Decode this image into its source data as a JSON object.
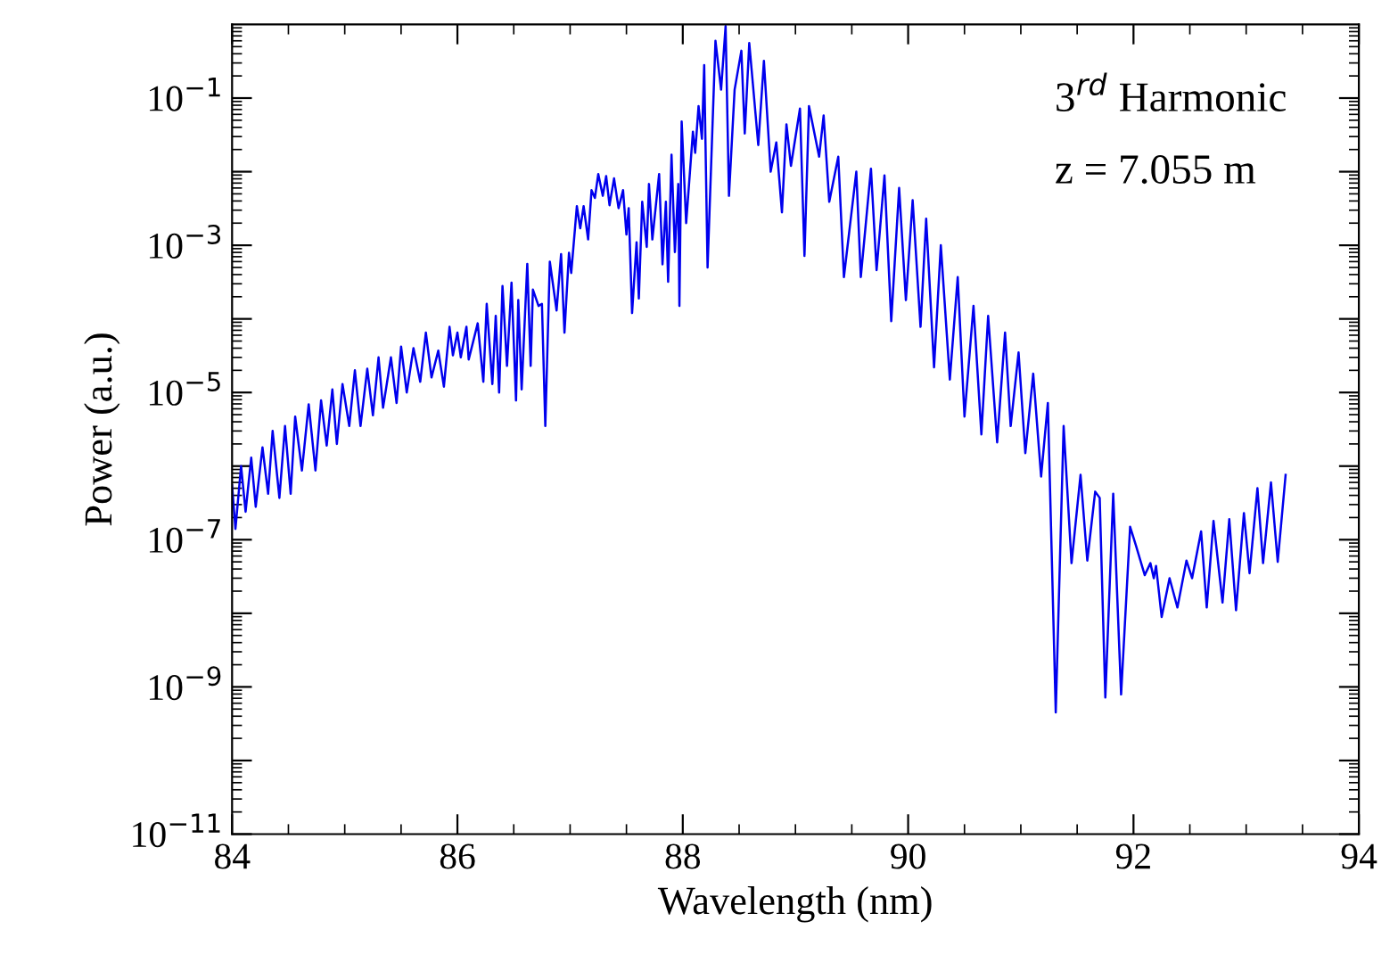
{
  "chart_data": {
    "type": "line",
    "xlabel": "Wavelength (nm)",
    "ylabel": "Power (a.u.)",
    "annotations": [
      "3$^{rd}$ Harmonic",
      "z = 7.055 m"
    ],
    "xlim": [
      84,
      94
    ],
    "xticks": [
      84,
      86,
      88,
      90,
      92,
      94
    ],
    "ylim": [
      1e-11,
      1
    ],
    "log": true,
    "yticks": [
      {
        "value": 1e-11,
        "label": "10$^{−11}$"
      },
      {
        "value": 1e-10,
        "label": null
      },
      {
        "value": 1e-09,
        "label": "10$^{−9}$"
      },
      {
        "value": 1e-08,
        "label": null
      },
      {
        "value": 1e-07,
        "label": "10$^{−7}$"
      },
      {
        "value": 1e-06,
        "label": null
      },
      {
        "value": 1e-05,
        "label": "10$^{−5}$"
      },
      {
        "value": 0.0001,
        "label": null
      },
      {
        "value": 0.001,
        "label": "10$^{−3}$"
      },
      {
        "value": 0.01,
        "label": null
      },
      {
        "value": 0.1,
        "label": "10$^{−1}$"
      }
    ],
    "grid": false,
    "legend": false,
    "marker": "none",
    "line_style": "solid",
    "series": [
      {
        "color": "#0000ee",
        "x": [
          84.0,
          84.03,
          84.08,
          84.12,
          84.17,
          84.21,
          84.27,
          84.32,
          84.36,
          84.42,
          84.47,
          84.52,
          84.56,
          84.62,
          84.68,
          84.74,
          84.79,
          84.84,
          84.89,
          84.93,
          84.98,
          85.04,
          85.09,
          85.14,
          85.2,
          85.25,
          85.3,
          85.34,
          85.41,
          85.46,
          85.5,
          85.55,
          85.61,
          85.67,
          85.72,
          85.77,
          85.83,
          85.88,
          85.93,
          85.96,
          86.0,
          86.03,
          86.08,
          86.1,
          86.18,
          86.23,
          86.26,
          86.31,
          86.34,
          86.37,
          86.4,
          86.44,
          86.48,
          86.52,
          86.54,
          86.57,
          86.62,
          86.65,
          86.67,
          86.72,
          86.75,
          86.78,
          86.82,
          86.88,
          86.92,
          86.95,
          86.99,
          87.01,
          87.06,
          87.09,
          87.12,
          87.16,
          87.19,
          87.22,
          87.25,
          87.29,
          87.32,
          87.35,
          87.39,
          87.43,
          87.47,
          87.5,
          87.52,
          87.55,
          87.59,
          87.61,
          87.64,
          87.68,
          87.7,
          87.73,
          87.79,
          87.82,
          87.85,
          87.87,
          87.9,
          87.93,
          87.96,
          87.97,
          87.99,
          88.03,
          88.09,
          88.11,
          88.14,
          88.17,
          88.19,
          88.22,
          88.29,
          88.34,
          88.38,
          88.41,
          88.46,
          88.52,
          88.55,
          88.59,
          88.67,
          88.72,
          88.78,
          88.83,
          88.88,
          88.92,
          88.96,
          89.04,
          89.08,
          89.12,
          89.21,
          89.25,
          89.3,
          89.38,
          89.43,
          89.54,
          89.58,
          89.67,
          89.72,
          89.79,
          89.85,
          89.92,
          89.98,
          90.04,
          90.11,
          90.16,
          90.23,
          90.29,
          90.37,
          90.44,
          90.5,
          90.58,
          90.65,
          90.71,
          90.79,
          90.86,
          90.91,
          90.98,
          91.04,
          91.11,
          91.18,
          91.24,
          91.31,
          91.38,
          91.45,
          91.53,
          91.59,
          91.66,
          91.7,
          91.75,
          91.82,
          91.89,
          91.97,
          92.02,
          92.1,
          92.15,
          92.18,
          92.2,
          92.25,
          92.32,
          92.39,
          92.47,
          92.52,
          92.6,
          92.65,
          92.71,
          92.79,
          92.85,
          92.91,
          92.98,
          93.03,
          93.1,
          93.15,
          93.22,
          93.28,
          93.35
        ],
        "values": [
          5.5e-07,
          1.4e-07,
          1e-06,
          2.4e-07,
          1.3e-06,
          2.8e-07,
          1.8e-06,
          4.2e-07,
          3e-06,
          3.7e-07,
          3.5e-06,
          4.2e-07,
          4.7e-06,
          8.7e-07,
          6.9e-06,
          8.7e-07,
          7.8e-06,
          1.9e-06,
          1.1e-05,
          2e-06,
          1.3e-05,
          3.5e-06,
          2e-05,
          3.5e-06,
          2.1e-05,
          4.9e-06,
          3e-05,
          6.2e-06,
          3e-05,
          7.2e-06,
          4.2e-05,
          1e-05,
          4e-05,
          1.4e-05,
          6.5e-05,
          1.6e-05,
          3.7e-05,
          1.2e-05,
          7.8e-05,
          3.2e-05,
          6.5e-05,
          3e-05,
          7.8e-05,
          2.8e-05,
          8.7e-05,
          1.4e-05,
          0.00016,
          1.3e-05,
          0.00011,
          1e-05,
          0.00028,
          2.3e-05,
          0.00031,
          7.8e-06,
          0.00018,
          1.1e-05,
          0.00056,
          2.3e-05,
          0.00025,
          0.00015,
          0.00016,
          3.5e-06,
          0.0006,
          0.00013,
          0.00076,
          6.5e-05,
          0.00079,
          0.00042,
          0.0034,
          0.0017,
          0.0034,
          0.0012,
          0.0056,
          0.0044,
          0.0093,
          0.0047,
          0.0087,
          0.0035,
          0.0081,
          0.0032,
          0.0056,
          0.0014,
          0.0032,
          0.00012,
          0.0011,
          0.00019,
          0.0039,
          0.00095,
          0.0068,
          0.0012,
          0.0093,
          0.00055,
          0.0039,
          0.00032,
          0.017,
          0.00081,
          0.0068,
          0.00015,
          0.048,
          0.002,
          0.035,
          0.018,
          0.078,
          0.028,
          0.28,
          0.0005,
          0.6,
          0.13,
          0.95,
          0.0047,
          0.13,
          0.44,
          0.033,
          0.56,
          0.023,
          0.32,
          0.01,
          0.025,
          0.0028,
          0.044,
          0.012,
          0.072,
          0.00072,
          0.078,
          0.016,
          0.058,
          0.0039,
          0.016,
          0.00037,
          0.01,
          0.00037,
          0.011,
          0.00046,
          0.0089,
          9.3e-05,
          0.006,
          0.00018,
          0.0041,
          7.8e-05,
          0.0023,
          2.2e-05,
          0.001,
          1.5e-05,
          0.00037,
          4.7e-06,
          0.00015,
          2.7e-06,
          0.00011,
          2.1e-06,
          6.5e-05,
          3.5e-06,
          3.5e-05,
          1.5e-06,
          1.8e-05,
          7.2e-07,
          7.2e-06,
          4.5e-10,
          3.5e-06,
          4.8e-08,
          7.6e-07,
          5.2e-08,
          4.5e-07,
          3.7e-07,
          7.2e-10,
          4.2e-07,
          7.9e-10,
          1.5e-07,
          8.5e-08,
          3.3e-08,
          4.8e-08,
          3e-08,
          4.4e-08,
          8.9e-09,
          3e-08,
          1.2e-08,
          5.2e-08,
          3e-08,
          1.3e-07,
          1.2e-08,
          1.8e-07,
          1.4e-08,
          1.9e-07,
          1.1e-08,
          2.3e-07,
          3.5e-08,
          5e-07,
          4.8e-08,
          6e-07,
          5e-08,
          7.6e-07
        ]
      }
    ]
  }
}
